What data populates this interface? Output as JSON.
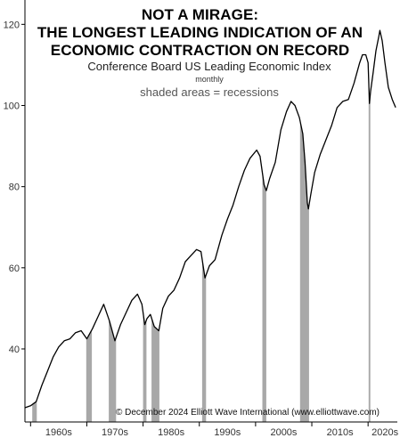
{
  "chart_data": {
    "type": "line",
    "title_lines": [
      "NOT A MIRAGE:",
      "THE LONGEST LEADING INDICATION OF AN",
      "ECONOMIC CONTRACTION ON RECORD"
    ],
    "subtitle": "Conference Board US Leading Economic Index",
    "frequency": "monthly",
    "note": "shaded areas = recessions",
    "copyright": "© December 2024 Elliott Wave International (www.elliottwave.com)",
    "xlabel": "",
    "ylabel": "",
    "xlim": [
      1959.0,
      2025.2
    ],
    "ylim": [
      22,
      126
    ],
    "y_ticks": [
      40,
      60,
      80,
      100,
      120
    ],
    "x_tick_labels": [
      {
        "label": "1960s",
        "x": 1965
      },
      {
        "label": "1970s",
        "x": 1975
      },
      {
        "label": "1980s",
        "x": 1985
      },
      {
        "label": "1990s",
        "x": 1995
      },
      {
        "label": "2000s",
        "x": 2005
      },
      {
        "label": "2010s",
        "x": 2015
      },
      {
        "label": "2020s",
        "x": 2023
      }
    ],
    "x_minor_ticks": [
      1960,
      1970,
      1980,
      1990,
      2000,
      2010,
      2020
    ],
    "recessions": [
      [
        1960.3,
        1961.1
      ],
      [
        1969.9,
        1970.9
      ],
      [
        1973.9,
        1975.2
      ],
      [
        1980.0,
        1980.6
      ],
      [
        1981.5,
        1982.9
      ],
      [
        1990.5,
        1991.2
      ],
      [
        2001.2,
        2001.9
      ],
      [
        2007.9,
        2009.5
      ],
      [
        2020.1,
        2020.4
      ]
    ],
    "series": [
      {
        "values": [
          [
            1959.0,
            25.5
          ],
          [
            1960.0,
            26.0
          ],
          [
            1961.0,
            27.0
          ],
          [
            1962.0,
            31.0
          ],
          [
            1963.0,
            34.5
          ],
          [
            1964.0,
            38.0
          ],
          [
            1965.0,
            40.5
          ],
          [
            1966.0,
            42.0
          ],
          [
            1967.0,
            42.5
          ],
          [
            1968.0,
            44.0
          ],
          [
            1969.0,
            44.5
          ],
          [
            1970.0,
            42.5
          ],
          [
            1971.0,
            45.0
          ],
          [
            1972.0,
            48.0
          ],
          [
            1973.0,
            51.0
          ],
          [
            1974.0,
            47.0
          ],
          [
            1975.0,
            42.0
          ],
          [
            1976.0,
            46.0
          ],
          [
            1977.0,
            49.0
          ],
          [
            1978.0,
            52.0
          ],
          [
            1979.0,
            53.5
          ],
          [
            1979.8,
            51.0
          ],
          [
            1980.3,
            46.0
          ],
          [
            1980.7,
            47.5
          ],
          [
            1981.3,
            48.5
          ],
          [
            1982.0,
            45.5
          ],
          [
            1982.8,
            44.5
          ],
          [
            1983.5,
            50.0
          ],
          [
            1984.5,
            53.0
          ],
          [
            1985.5,
            54.5
          ],
          [
            1986.5,
            57.5
          ],
          [
            1987.5,
            61.5
          ],
          [
            1988.5,
            63.0
          ],
          [
            1989.5,
            64.5
          ],
          [
            1990.3,
            64.0
          ],
          [
            1991.0,
            57.5
          ],
          [
            1991.8,
            60.5
          ],
          [
            1992.8,
            62.0
          ],
          [
            1994.0,
            68.0
          ],
          [
            1995.0,
            72.0
          ],
          [
            1996.0,
            75.5
          ],
          [
            1997.0,
            80.0
          ],
          [
            1998.0,
            84.0
          ],
          [
            1999.0,
            87.0
          ],
          [
            2000.2,
            89.0
          ],
          [
            2000.8,
            87.5
          ],
          [
            2001.5,
            80.5
          ],
          [
            2001.9,
            79.0
          ],
          [
            2002.5,
            82.0
          ],
          [
            2003.5,
            86.0
          ],
          [
            2004.5,
            94.0
          ],
          [
            2005.5,
            98.5
          ],
          [
            2006.3,
            101.0
          ],
          [
            2007.0,
            100.0
          ],
          [
            2007.8,
            97.0
          ],
          [
            2008.4,
            93.0
          ],
          [
            2008.8,
            86.0
          ],
          [
            2009.2,
            76.0
          ],
          [
            2009.4,
            74.5
          ],
          [
            2009.8,
            78.0
          ],
          [
            2010.5,
            83.5
          ],
          [
            2011.5,
            88.0
          ],
          [
            2012.5,
            91.5
          ],
          [
            2013.5,
            95.0
          ],
          [
            2014.5,
            99.5
          ],
          [
            2015.5,
            101.0
          ],
          [
            2016.5,
            101.5
          ],
          [
            2017.5,
            105.5
          ],
          [
            2018.5,
            110.5
          ],
          [
            2019.0,
            112.5
          ],
          [
            2019.6,
            112.5
          ],
          [
            2020.0,
            110.5
          ],
          [
            2020.25,
            100.5
          ],
          [
            2020.45,
            103.5
          ],
          [
            2020.9,
            108.0
          ],
          [
            2021.4,
            113.5
          ],
          [
            2021.9,
            117.0
          ],
          [
            2022.1,
            118.5
          ],
          [
            2022.5,
            116.0
          ],
          [
            2023.0,
            110.5
          ],
          [
            2023.6,
            104.5
          ],
          [
            2024.3,
            101.5
          ],
          [
            2024.9,
            99.5
          ]
        ]
      }
    ],
    "colors": {
      "line": "#000000",
      "recession_fill": "#a8a8a8",
      "axis": "#000000",
      "tick_label": "#333333"
    }
  }
}
